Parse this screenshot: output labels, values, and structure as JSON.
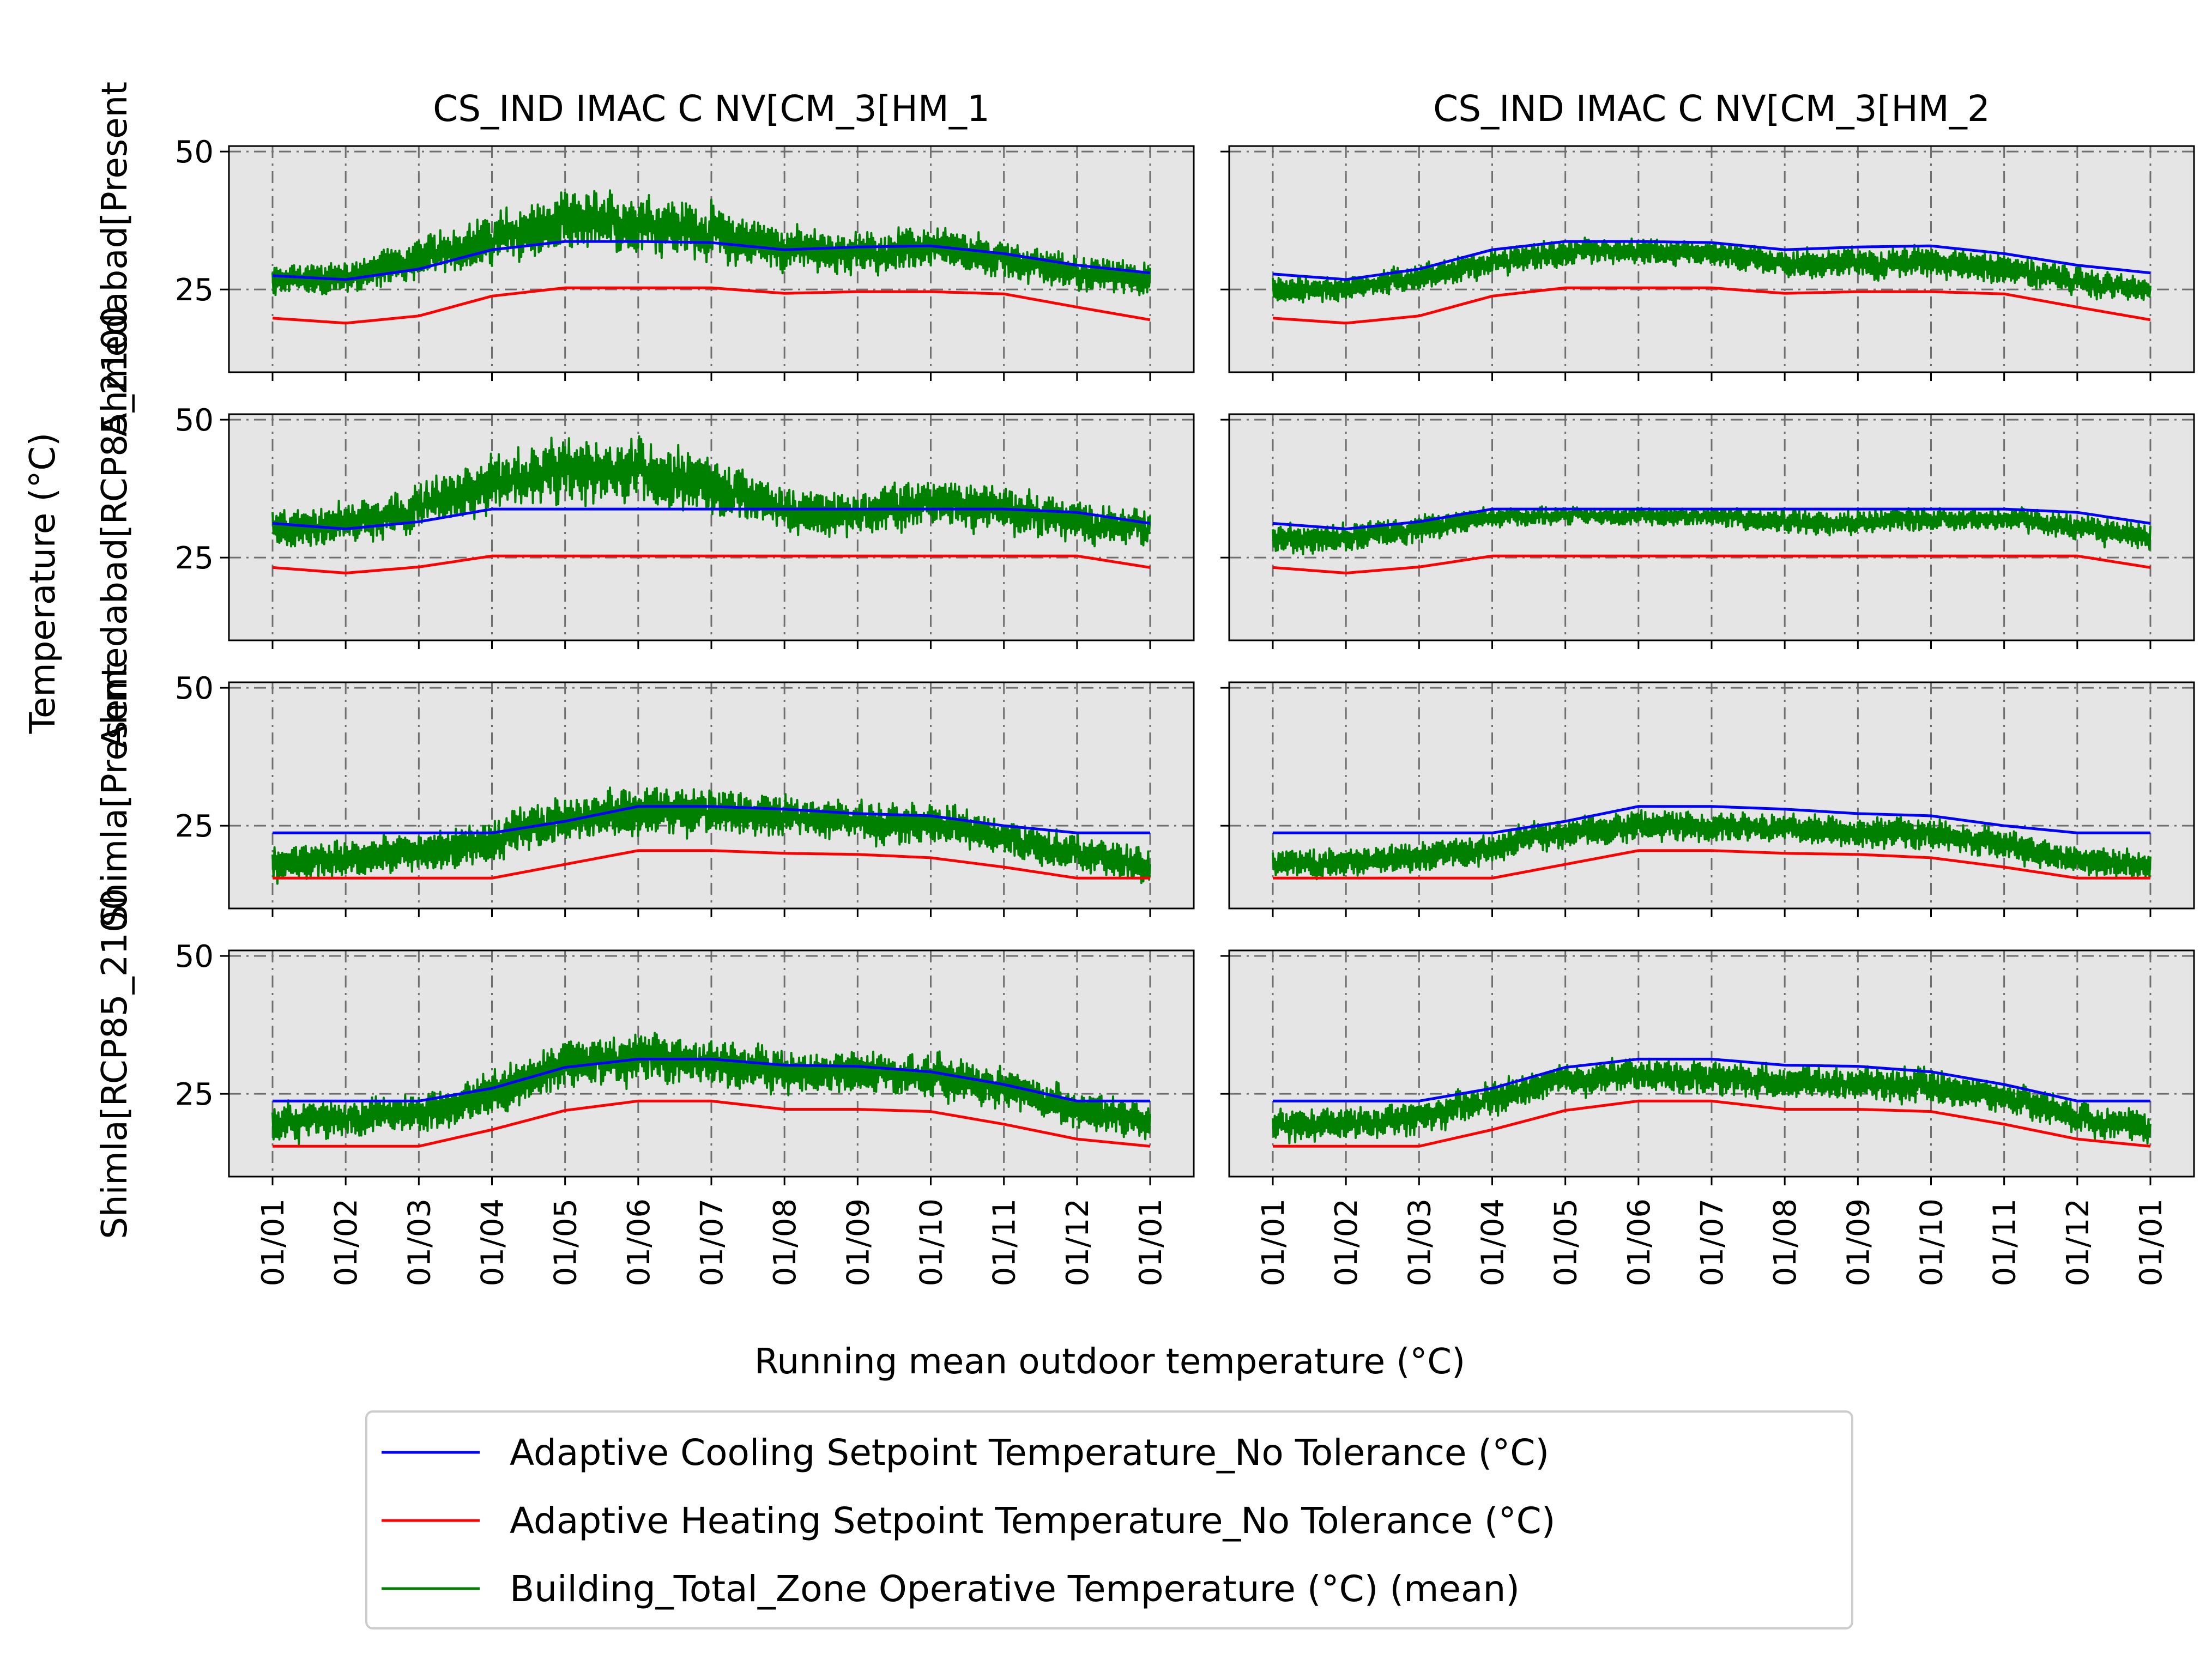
{
  "figure": {
    "x_axis_label": "Running mean outdoor temperature (°C)",
    "y_axis_label": "Temperature (°C)"
  },
  "legend": {
    "placement": "bottom-center",
    "entries": [
      {
        "label": "Adaptive Cooling Setpoint Temperature_No Tolerance (°C)",
        "color": "#0000ff"
      },
      {
        "label": "Adaptive Heating Setpoint Temperature_No Tolerance (°C)",
        "color": "#ff0000"
      },
      {
        "label": "Building_Total_Zone Operative Temperature (°C) (mean)",
        "color": "#008000"
      }
    ]
  },
  "colors": {
    "panel_background": "#e5e5e5",
    "grid": "#707070",
    "cooling": "#0000ff",
    "heating": "#ff0000",
    "operative": "#008000"
  },
  "chart_data": {
    "type": "line",
    "layout": "4 rows x 2 columns of small multiples",
    "x": [
      "01/01",
      "01/02",
      "01/03",
      "01/04",
      "01/05",
      "01/06",
      "01/07",
      "01/08",
      "01/09",
      "01/10",
      "01/11",
      "01/12",
      "01/01"
    ],
    "x_tick_labels": [
      "01/01",
      "01/02",
      "01/03",
      "01/04",
      "01/05",
      "01/06",
      "01/07",
      "01/08",
      "01/09",
      "01/10",
      "01/11",
      "01/12",
      "01/01"
    ],
    "y_ticks": [
      25,
      50
    ],
    "ylim": [
      10,
      51
    ],
    "grid": true,
    "column_titles": [
      "CS_IND IMAC C NV[CM_3[HM_1",
      "CS_IND IMAC C NV[CM_3[HM_2"
    ],
    "row_labels": [
      "Ahmedabad[Present",
      "Ahmedabad[RCP85_2100",
      "Shimla[Present",
      "Shimla[RCP85_2100"
    ],
    "panels": [
      {
        "row": 0,
        "col": 0,
        "cooling": [
          27.5,
          26.8,
          28.7,
          32.2,
          33.7,
          33.7,
          33.5,
          32.2,
          32.7,
          32.9,
          31.5,
          29.4,
          28.0
        ],
        "heating": [
          19.8,
          18.9,
          20.2,
          23.8,
          25.3,
          25.3,
          25.3,
          24.3,
          24.6,
          24.6,
          24.2,
          21.8,
          19.5
        ],
        "operative_mean": [
          26.5,
          27.3,
          30.5,
          34.2,
          37.0,
          37.0,
          35.3,
          32.5,
          31.5,
          32.5,
          30.5,
          28.0,
          27.0
        ],
        "operative_amplitude": [
          2.5,
          2.6,
          3.2,
          4.1,
          4.8,
          4.8,
          4.4,
          3.5,
          3.3,
          3.4,
          3.2,
          2.8,
          2.6
        ]
      },
      {
        "row": 0,
        "col": 1,
        "cooling": [
          27.8,
          26.8,
          28.7,
          32.2,
          33.7,
          33.7,
          33.5,
          32.2,
          32.7,
          32.9,
          31.5,
          29.4,
          28.0
        ],
        "heating": [
          19.8,
          18.9,
          20.2,
          23.8,
          25.3,
          25.3,
          25.3,
          24.3,
          24.6,
          24.6,
          24.2,
          21.8,
          19.5
        ],
        "operative_mean": [
          24.8,
          25.3,
          27.3,
          29.8,
          31.7,
          31.8,
          31.5,
          29.8,
          29.8,
          30.3,
          28.8,
          26.5,
          24.5
        ],
        "operative_amplitude": [
          2.0,
          2.0,
          2.0,
          2.2,
          2.0,
          2.0,
          2.0,
          2.2,
          2.4,
          2.4,
          2.4,
          2.2,
          2.0
        ]
      },
      {
        "row": 1,
        "col": 0,
        "cooling": [
          31.2,
          30.2,
          31.5,
          33.8,
          33.8,
          33.8,
          33.8,
          33.8,
          33.8,
          33.8,
          33.8,
          33.2,
          31.2
        ],
        "heating": [
          23.2,
          22.2,
          23.3,
          25.3,
          25.3,
          25.3,
          25.3,
          25.3,
          25.3,
          25.3,
          25.3,
          25.3,
          23.2
        ],
        "operative_mean": [
          30.0,
          31.5,
          34.0,
          38.5,
          40.5,
          41.0,
          38.0,
          33.5,
          33.0,
          35.0,
          34.0,
          31.5,
          30.0
        ],
        "operative_amplitude": [
          3.0,
          3.2,
          3.6,
          4.4,
          5.0,
          5.0,
          4.8,
          3.6,
          3.5,
          3.8,
          3.6,
          3.2,
          3.0
        ]
      },
      {
        "row": 1,
        "col": 1,
        "cooling": [
          31.2,
          30.2,
          31.5,
          33.8,
          33.8,
          33.8,
          33.8,
          33.8,
          33.8,
          33.8,
          33.8,
          33.2,
          31.2
        ],
        "heating": [
          23.2,
          22.2,
          23.3,
          25.3,
          25.3,
          25.3,
          25.3,
          25.3,
          25.3,
          25.3,
          25.3,
          25.3,
          23.2
        ],
        "operative_mean": [
          28.3,
          28.8,
          30.2,
          32.2,
          32.8,
          32.5,
          32.5,
          31.5,
          31.5,
          32.0,
          32.0,
          30.5,
          28.8
        ],
        "operative_amplitude": [
          2.3,
          2.3,
          2.2,
          1.6,
          1.3,
          1.3,
          1.5,
          1.9,
          2.0,
          1.8,
          1.8,
          2.1,
          2.3
        ]
      },
      {
        "row": 2,
        "col": 0,
        "cooling": [
          23.7,
          23.7,
          23.7,
          23.7,
          25.8,
          28.5,
          28.5,
          28.0,
          27.2,
          26.8,
          25.0,
          23.7,
          23.7
        ],
        "heating": [
          15.5,
          15.5,
          15.5,
          15.5,
          18.0,
          20.5,
          20.5,
          20.0,
          19.8,
          19.2,
          17.5,
          15.5,
          15.5
        ],
        "operative_mean": [
          18.0,
          19.0,
          20.0,
          22.0,
          26.5,
          28.0,
          27.5,
          26.5,
          26.0,
          25.5,
          23.0,
          20.0,
          17.5
        ],
        "operative_amplitude": [
          2.8,
          3.0,
          3.0,
          3.4,
          3.8,
          3.8,
          3.6,
          3.2,
          3.2,
          3.2,
          3.0,
          2.8,
          2.8
        ]
      },
      {
        "row": 2,
        "col": 1,
        "cooling": [
          23.7,
          23.7,
          23.7,
          23.7,
          25.8,
          28.5,
          28.5,
          28.0,
          27.2,
          26.8,
          25.0,
          23.7,
          23.7
        ],
        "heating": [
          15.5,
          15.5,
          15.5,
          15.5,
          18.0,
          20.5,
          20.5,
          20.0,
          19.8,
          19.2,
          17.5,
          15.5,
          15.5
        ],
        "operative_mean": [
          18.0,
          18.5,
          19.2,
          21.0,
          24.0,
          25.0,
          25.0,
          24.5,
          24.0,
          23.5,
          21.5,
          19.0,
          17.5
        ],
        "operative_amplitude": [
          2.2,
          2.4,
          2.4,
          2.4,
          2.4,
          2.4,
          2.4,
          2.4,
          2.4,
          2.4,
          2.4,
          2.4,
          2.2
        ]
      },
      {
        "row": 3,
        "col": 0,
        "cooling": [
          23.7,
          23.7,
          23.7,
          26.0,
          29.8,
          31.3,
          31.3,
          30.2,
          30.0,
          29.0,
          26.7,
          23.7,
          23.7
        ],
        "heating": [
          15.5,
          15.5,
          15.5,
          18.5,
          22.0,
          23.7,
          23.7,
          22.2,
          22.2,
          21.8,
          19.5,
          16.8,
          15.5
        ],
        "operative_mean": [
          20.0,
          20.5,
          21.5,
          25.0,
          30.5,
          31.5,
          30.5,
          29.0,
          28.5,
          28.5,
          26.0,
          22.5,
          19.5
        ],
        "operative_amplitude": [
          3.0,
          3.0,
          3.2,
          3.6,
          4.0,
          4.0,
          3.8,
          3.4,
          3.4,
          3.4,
          3.2,
          3.0,
          3.0
        ]
      },
      {
        "row": 3,
        "col": 1,
        "cooling": [
          23.7,
          23.7,
          23.7,
          26.0,
          29.8,
          31.3,
          31.3,
          30.2,
          30.0,
          29.0,
          26.7,
          23.7,
          23.7
        ],
        "heating": [
          15.5,
          15.5,
          15.5,
          18.5,
          22.0,
          23.7,
          23.7,
          22.2,
          22.2,
          21.8,
          19.5,
          16.8,
          15.5
        ],
        "operative_mean": [
          19.0,
          19.5,
          20.5,
          24.0,
          27.5,
          28.5,
          28.0,
          27.0,
          27.0,
          26.5,
          24.5,
          21.0,
          18.5
        ],
        "operative_amplitude": [
          2.6,
          2.6,
          2.6,
          2.6,
          2.6,
          2.6,
          2.6,
          2.6,
          2.6,
          2.6,
          2.6,
          2.6,
          2.6
        ]
      }
    ]
  }
}
